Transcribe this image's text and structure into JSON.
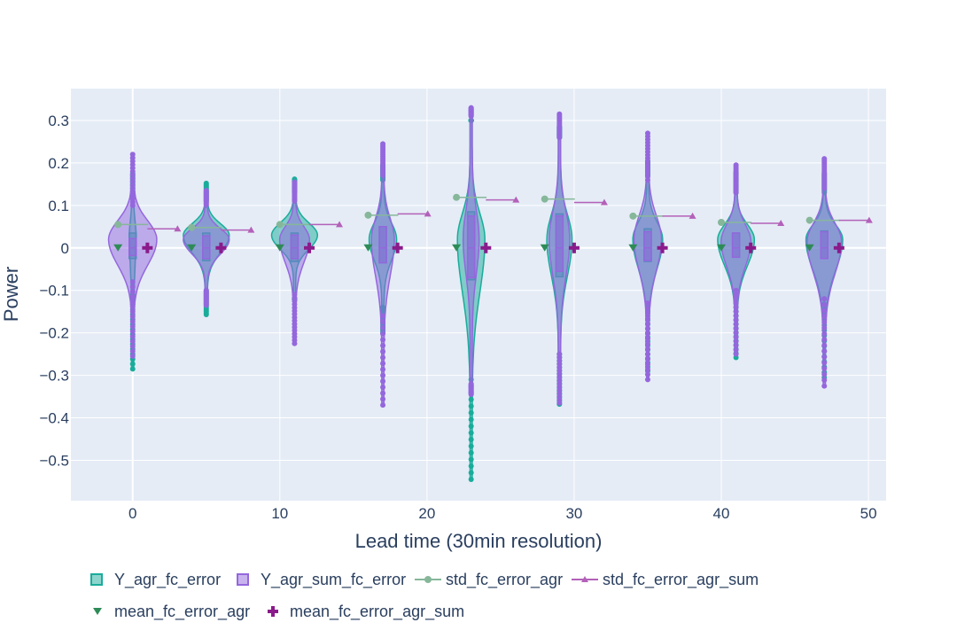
{
  "chart_data": {
    "type": "violin",
    "xlabel": "Lead time (30min resolution)",
    "ylabel": "Power",
    "xlim": [
      -4.2,
      51.2
    ],
    "ylim": [
      -0.595,
      0.375
    ],
    "x_ticks": [
      0,
      10,
      20,
      30,
      40,
      50
    ],
    "y_ticks": [
      0.3,
      0.2,
      0.1,
      0,
      -0.1,
      -0.2,
      -0.3,
      -0.4,
      -0.5
    ],
    "x_tick_labels": [
      "0",
      "10",
      "20",
      "30",
      "40",
      "50"
    ],
    "y_tick_labels": [
      "0.3",
      "0.2",
      "0.1",
      "0",
      "−0.1",
      "−0.2",
      "−0.3",
      "−0.4",
      "−0.5"
    ],
    "grid": true,
    "legend_position": "bottom",
    "lead_times": [
      0,
      5,
      11,
      17,
      23,
      29,
      35,
      41,
      47
    ],
    "series": [
      {
        "name": "Y_agr_fc_error",
        "kind": "violin",
        "color": "#1aac9b",
        "fill": "rgba(26,172,155,0.5)",
        "min": [
          -0.285,
          -0.157,
          -0.12,
          -0.2,
          -0.545,
          -0.368,
          -0.29,
          -0.258,
          -0.305
        ],
        "max": [
          0.175,
          0.152,
          0.162,
          0.195,
          0.3,
          0.285,
          0.205,
          0.178,
          0.175
        ],
        "q1": [
          -0.025,
          -0.03,
          -0.032,
          -0.035,
          -0.075,
          -0.068,
          -0.032,
          -0.022,
          -0.025
        ],
        "median": [
          0.0,
          0.0,
          0.0,
          0.0,
          0.0,
          0.0,
          0.0,
          0.0,
          0.0
        ],
        "q3": [
          0.035,
          0.035,
          0.035,
          0.05,
          0.085,
          0.08,
          0.045,
          0.035,
          0.04
        ],
        "whisker_low": [
          -0.11,
          -0.1,
          -0.12,
          -0.14,
          -0.31,
          -0.25,
          -0.14,
          -0.11,
          -0.12
        ],
        "whisker_high": [
          0.12,
          0.11,
          0.13,
          0.16,
          0.3,
          0.26,
          0.17,
          0.13,
          0.13
        ],
        "density_peak": [
          0.03,
          0.03,
          0.03,
          0.02,
          0.02,
          0.02,
          0.02,
          0.02,
          0.02
        ],
        "width": [
          0.1,
          0.95,
          0.95,
          0.55,
          0.55,
          0.5,
          0.6,
          0.75,
          0.75
        ]
      },
      {
        "name": "Y_agr_sum_fc_error",
        "kind": "violin",
        "color": "#9467dd",
        "fill": "rgba(148,103,221,0.5)",
        "min": [
          -0.255,
          -0.135,
          -0.225,
          -0.37,
          -0.345,
          -0.365,
          -0.31,
          -0.25,
          -0.325
        ],
        "max": [
          0.22,
          0.135,
          0.155,
          0.245,
          0.33,
          0.315,
          0.27,
          0.195,
          0.21
        ],
        "q1": [
          -0.018,
          -0.025,
          -0.025,
          -0.035,
          -0.07,
          -0.055,
          -0.03,
          -0.022,
          -0.025
        ],
        "median": [
          0.0,
          0.0,
          0.0,
          0.0,
          0.0,
          0.0,
          0.0,
          0.0,
          0.0
        ],
        "q3": [
          0.022,
          0.028,
          0.03,
          0.05,
          0.075,
          0.075,
          0.038,
          0.035,
          0.038
        ],
        "whisker_low": [
          -0.08,
          -0.1,
          -0.11,
          -0.16,
          -0.32,
          -0.25,
          -0.13,
          -0.1,
          -0.12
        ],
        "whisker_high": [
          0.1,
          0.1,
          0.11,
          0.17,
          0.31,
          0.26,
          0.16,
          0.13,
          0.14
        ],
        "density_peak": [
          0.02,
          0.02,
          0.02,
          0.02,
          0.02,
          0.02,
          0.02,
          0.015,
          0.015
        ],
        "width": [
          1.0,
          0.95,
          0.6,
          0.45,
          0.3,
          0.4,
          0.55,
          0.6,
          0.7
        ]
      },
      {
        "name": "std_fc_error_agr",
        "kind": "line",
        "color": "#86b79a",
        "marker": "circle",
        "x": [
          -1,
          4,
          10,
          16,
          22,
          28,
          34,
          40,
          46
        ],
        "values": [
          0.055,
          0.048,
          0.055,
          0.077,
          0.119,
          0.115,
          0.075,
          0.06,
          0.065
        ]
      },
      {
        "name": "std_fc_error_agr_sum",
        "kind": "line",
        "color": "#b361b9",
        "marker": "triangle-up",
        "x": [
          1,
          6,
          12,
          18,
          24,
          30,
          36,
          42,
          48
        ],
        "values": [
          0.045,
          0.042,
          0.055,
          0.08,
          0.113,
          0.107,
          0.075,
          0.058,
          0.065
        ]
      },
      {
        "name": "mean_fc_error_agr",
        "kind": "scatter",
        "color": "#2e8b57",
        "marker": "triangle-down",
        "x": [
          -1,
          4,
          10,
          16,
          22,
          28,
          34,
          40,
          46
        ],
        "values": [
          0.0,
          0.0,
          0.0,
          0.0,
          0.0,
          0.0,
          0.0,
          0.0,
          0.0
        ]
      },
      {
        "name": "mean_fc_error_agr_sum",
        "kind": "scatter",
        "color": "#8b1a8b",
        "marker": "cross",
        "x": [
          1,
          6,
          12,
          18,
          24,
          30,
          36,
          42,
          48
        ],
        "values": [
          0.0,
          0.0,
          0.0,
          0.0,
          0.0,
          0.0,
          0.0,
          0.0,
          0.0
        ]
      }
    ]
  }
}
